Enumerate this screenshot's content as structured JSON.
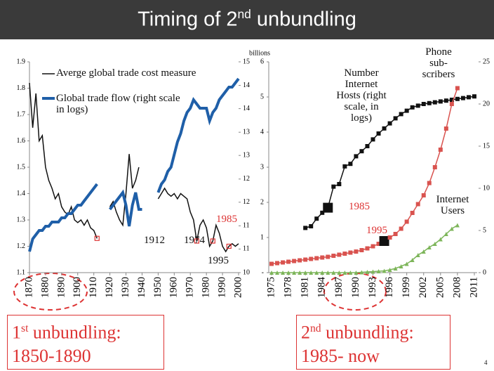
{
  "title": {
    "pre": "Timing of 2",
    "sup": "nd",
    "post": " unbundling"
  },
  "page_number": "4",
  "boxes": [
    {
      "pre": "1",
      "sup": "st",
      "post": " unbundling:",
      "line2": "1850-1890"
    },
    {
      "pre": "2",
      "sup": "nd",
      "post": " unbundling:",
      "line2": "1985- now"
    }
  ],
  "chart_data": [
    {
      "type": "line",
      "x": [
        1870,
        1872,
        1874,
        1876,
        1878,
        1880,
        1882,
        1884,
        1886,
        1888,
        1890,
        1892,
        1894,
        1896,
        1898,
        1900,
        1902,
        1904,
        1906,
        1908,
        1910,
        1912,
        1914,
        1916,
        1918,
        1920,
        1922,
        1924,
        1926,
        1928,
        1930,
        1932,
        1934,
        1936,
        1938,
        1940,
        1942,
        1944,
        1946,
        1948,
        1950,
        1952,
        1954,
        1956,
        1958,
        1960,
        1962,
        1964,
        1966,
        1968,
        1970,
        1972,
        1974,
        1976,
        1978,
        1980,
        1982,
        1984,
        1986,
        1988,
        1990,
        1992,
        1994,
        1996,
        1998,
        2000
      ],
      "xlim": [
        1870,
        2000
      ],
      "xticks": [
        1870,
        1880,
        1890,
        1900,
        1910,
        1920,
        1930,
        1940,
        1950,
        1960,
        1970,
        1980,
        1990,
        2000
      ],
      "ylim": [
        1.1,
        1.9
      ],
      "yticks": [
        1.1,
        1.2,
        1.3,
        1.4,
        1.5,
        1.6,
        1.7,
        1.8,
        1.9
      ],
      "y2lim": [
        10,
        15
      ],
      "y2ticks": [
        10,
        {
          "value": 10.56,
          "label": "11"
        },
        {
          "value": 11.11,
          "label": "11"
        },
        {
          "value": 11.67,
          "label": "12"
        },
        {
          "value": 12.22,
          "label": "12"
        },
        {
          "value": 12.78,
          "label": "13"
        },
        {
          "value": 13.33,
          "label": "13"
        },
        {
          "value": 13.89,
          "label": "14"
        },
        {
          "value": 14.44,
          "label": "14"
        },
        15
      ],
      "series": [
        {
          "name": "Averge global trade cost measure",
          "color": "#111111",
          "values": [
            1.82,
            1.65,
            1.78,
            1.6,
            1.62,
            1.5,
            1.45,
            1.42,
            1.38,
            1.4,
            1.35,
            1.33,
            1.32,
            1.35,
            1.3,
            1.29,
            1.3,
            1.28,
            1.3,
            1.27,
            1.26,
            1.23,
            null,
            null,
            null,
            1.35,
            1.37,
            1.33,
            1.3,
            1.28,
            1.4,
            1.55,
            1.42,
            1.45,
            1.5,
            null,
            null,
            null,
            null,
            null,
            1.38,
            1.4,
            1.42,
            1.4,
            1.39,
            1.4,
            1.38,
            1.4,
            1.39,
            1.38,
            1.33,
            1.3,
            1.22,
            1.28,
            1.3,
            1.27,
            1.2,
            1.22,
            1.28,
            1.25,
            1.2,
            1.18,
            1.2,
            1.21,
            1.2,
            1.21
          ]
        },
        {
          "name": "Global trade flow (right scale in logs)",
          "color": "#1f5fa8",
          "axis": "y2",
          "values": [
            10.5,
            10.8,
            10.9,
            11.0,
            11.0,
            11.1,
            11.1,
            11.2,
            11.2,
            11.2,
            11.3,
            11.3,
            11.4,
            11.4,
            11.5,
            11.6,
            11.6,
            11.7,
            11.8,
            11.9,
            12.0,
            12.1,
            null,
            null,
            null,
            11.5,
            11.6,
            11.7,
            11.8,
            11.9,
            11.6,
            11.1,
            11.6,
            11.9,
            11.5,
            11.5,
            null,
            null,
            null,
            null,
            11.9,
            12.1,
            12.2,
            12.4,
            12.5,
            12.8,
            13.1,
            13.3,
            13.6,
            13.8,
            13.9,
            14.1,
            14.0,
            13.9,
            13.9,
            13.9,
            13.6,
            13.8,
            13.9,
            14.1,
            14.2,
            14.3,
            14.4,
            14.4,
            14.5,
            14.6
          ]
        }
      ],
      "annotations": [
        "1912",
        "1974",
        "1985",
        "1995"
      ]
    },
    {
      "type": "line",
      "y_label": "billions",
      "categories": [
        "1975",
        null,
        null,
        "1978",
        null,
        null,
        "1981",
        null,
        null,
        "1984",
        null,
        null,
        "1987",
        null,
        null,
        "1990",
        null,
        null,
        "1993",
        null,
        null,
        "1996",
        null,
        null,
        "1999",
        null,
        null,
        "2002",
        null,
        null,
        "2005",
        null,
        null,
        "2008",
        null,
        null,
        "2011"
      ],
      "ylim": [
        0,
        6
      ],
      "yticks": [
        {
          "value": 0,
          "label": "-"
        },
        1,
        2,
        3,
        4,
        5,
        6
      ],
      "y2lim": [
        0,
        25
      ],
      "y2ticks": [
        0,
        5,
        10,
        15,
        20,
        25
      ],
      "series": [
        {
          "name": "Number Internet Hosts (right scale, in logs)",
          "color": "#111111",
          "marker": "square",
          "axis": "y2",
          "values": [
            null,
            null,
            null,
            null,
            null,
            null,
            5.3,
            5.5,
            6.4,
            7.1,
            7.7,
            10.2,
            10.5,
            12.6,
            12.9,
            13.8,
            14.4,
            15.0,
            15.8,
            16.5,
            17.1,
            17.7,
            18.3,
            18.8,
            19.2,
            19.6,
            19.8,
            20.0,
            20.1,
            20.2,
            20.3,
            20.4,
            20.5,
            20.6,
            20.7,
            20.8,
            20.9
          ]
        },
        {
          "name": "Phone sub-scribers",
          "color": "#d9534f",
          "marker": "square",
          "values": [
            0.25,
            0.27,
            0.29,
            0.31,
            0.33,
            0.35,
            0.37,
            0.39,
            0.41,
            0.43,
            0.45,
            0.48,
            0.51,
            0.54,
            0.57,
            0.6,
            0.64,
            0.69,
            0.75,
            0.82,
            0.9,
            1.0,
            1.1,
            1.25,
            1.45,
            1.7,
            1.95,
            2.2,
            2.55,
            3.0,
            3.5,
            4.1,
            4.8,
            5.25,
            null,
            null,
            null
          ]
        },
        {
          "name": "Internet Users",
          "color": "#7db55a",
          "marker": "triangle",
          "values": [
            0,
            0,
            0,
            0,
            0,
            0,
            0,
            0,
            0,
            0,
            0,
            0,
            0,
            0,
            0,
            0,
            0.01,
            0.02,
            0.03,
            0.04,
            0.05,
            0.08,
            0.12,
            0.18,
            0.25,
            0.36,
            0.5,
            0.6,
            0.72,
            0.82,
            0.95,
            1.1,
            1.25,
            1.35,
            null,
            null,
            null
          ]
        }
      ],
      "annotations": [
        "1985",
        "1995"
      ]
    }
  ]
}
